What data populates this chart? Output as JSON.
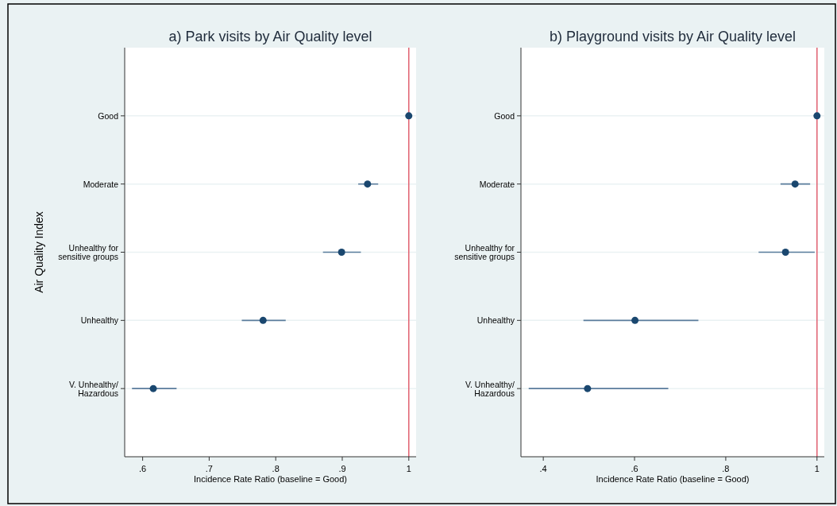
{
  "chart_data": [
    {
      "type": "scatter",
      "title": "a) Park visits by Air Quality level",
      "xlabel": "Incidence Rate Ratio (baseline = Good)",
      "ylabel": "Air Quality Index",
      "orientation": "horizontal",
      "categories": [
        "Good",
        "Moderate",
        "Unhealthy for\nsensitive groups",
        "Unhealthy",
        "V. Unhealthy/\nHazardous"
      ],
      "series": [
        {
          "color": "#1a476f",
          "values": [
            1,
            0.938,
            0.899,
            0.781,
            0.616
          ],
          "errors": [
            null,
            [
              0.924,
              0.954
            ],
            [
              0.871,
              0.928
            ],
            [
              0.749,
              0.815
            ],
            [
              0.584,
              0.651
            ]
          ]
        }
      ],
      "xlim": [
        0.573,
        1.011
      ],
      "xticks": [
        {
          "value": 0.6,
          "label": ".6"
        },
        {
          "value": 0.7,
          "label": ".7"
        },
        {
          "value": 0.8,
          "label": ".8"
        },
        {
          "value": 0.9,
          "label": ".9"
        },
        1
      ],
      "grid": "y",
      "marker": "circle",
      "ref_lines": [
        {
          "axis": "x",
          "value": 1,
          "color": "#e06070"
        }
      ]
    },
    {
      "type": "scatter",
      "title": "b) Playground visits by Air Quality level",
      "xlabel": "Incidence Rate Ratio (baseline = Good)",
      "orientation": "horizontal",
      "categories": [
        "Good",
        "Moderate",
        "Unhealthy for\nsensitive groups",
        "Unhealthy",
        "V. Unhealthy/\nHazardous"
      ],
      "series": [
        {
          "color": "#1a476f",
          "values": [
            1,
            0.952,
            0.931,
            0.601,
            0.497
          ],
          "errors": [
            null,
            [
              0.92,
              0.985
            ],
            [
              0.872,
              0.995
            ],
            [
              0.488,
              0.74
            ],
            [
              0.368,
              0.674
            ]
          ]
        }
      ],
      "xlim": [
        0.351,
        1.016
      ],
      "xticks": [
        {
          "value": 0.4,
          "label": ".4"
        },
        {
          "value": 0.6,
          "label": ".6"
        },
        {
          "value": 0.8,
          "label": ".8"
        },
        1
      ],
      "grid": "y",
      "marker": "circle",
      "ref_lines": [
        {
          "axis": "x",
          "value": 1,
          "color": "#e06070"
        }
      ]
    }
  ]
}
